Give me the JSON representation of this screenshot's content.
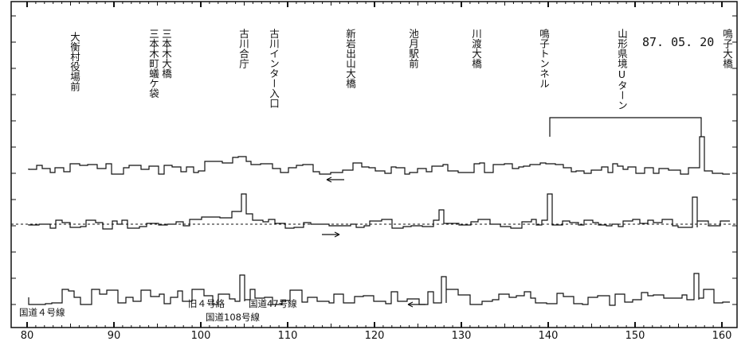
{
  "chart_data": {
    "type": "line",
    "date": "87. 05. 20",
    "x_ticks": [
      80,
      90,
      100,
      110,
      120,
      130,
      140,
      150,
      160
    ],
    "xlim": [
      80,
      161
    ],
    "locations": [
      {
        "label": "大衡村役場前",
        "x": 85.2
      },
      {
        "label": "三本木大橋",
        "x": 95.3
      },
      {
        "label": "三本木町蟻ケ袋",
        "x": 94.3
      },
      {
        "label": "古川合庁",
        "x": 104.2
      },
      {
        "label": "古川インター入口",
        "x": 109.5
      },
      {
        "label": "新岩出山大橋",
        "x": 117.1
      },
      {
        "label": "池月駅前",
        "x": 125.5
      },
      {
        "label": "川渡大橋",
        "x": 132.7
      },
      {
        "label": "鳴子トンネル",
        "x": 140.3
      },
      {
        "label": "山形県境Uターン",
        "x": 150.3
      },
      {
        "label": "鳴子大橋",
        "x": 159.8
      }
    ],
    "u_turn": [
      139.5,
      157.5
    ],
    "annotations": [
      "国道４号線",
      "旧４号絡",
      "国道47号線",
      "国道108号線"
    ],
    "arrows": [
      "←",
      "→",
      "←"
    ]
  }
}
